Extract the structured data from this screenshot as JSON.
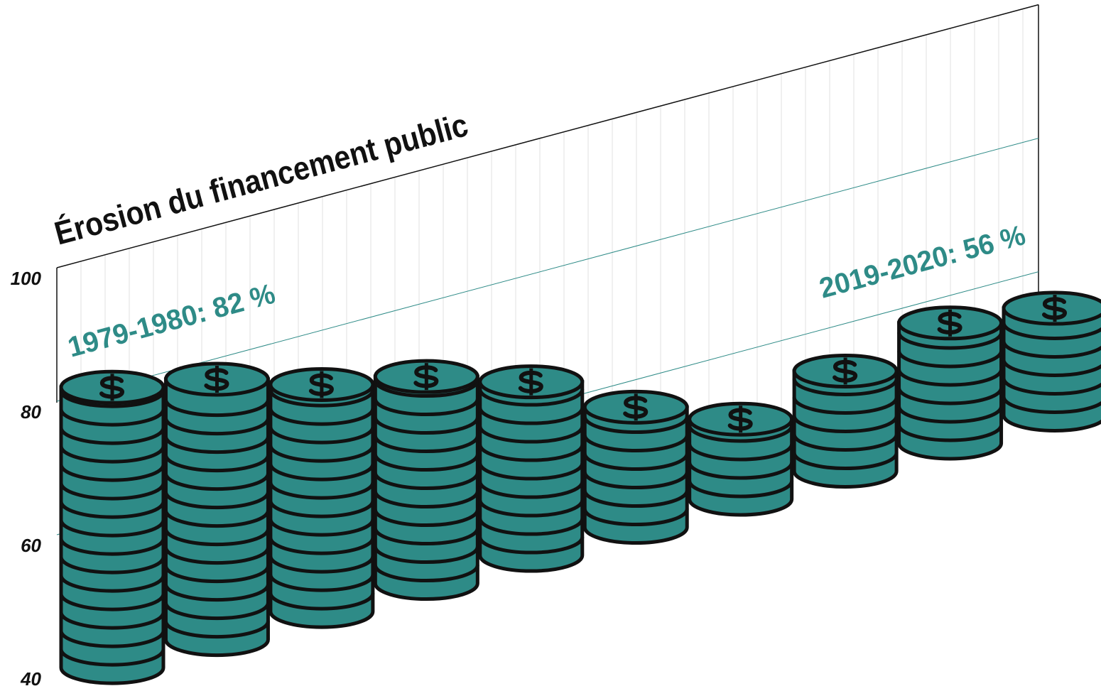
{
  "chart_data": {
    "type": "coin-stack",
    "title": "Érosion du financement public",
    "values": [
      82,
      79,
      74,
      71,
      66,
      58,
      52,
      55,
      58,
      56
    ],
    "color": "#2e8b87",
    "ylim": [
      40,
      100
    ],
    "yticks": [
      40,
      60,
      80,
      100
    ],
    "grid": true,
    "annotations": [
      "1979-1980: 82 %",
      "2019-2020: 56 %"
    ]
  }
}
